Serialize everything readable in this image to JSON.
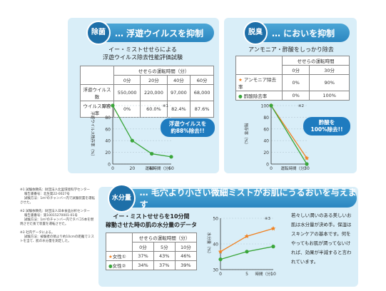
{
  "virus": {
    "badge": "除菌",
    "title": "… 浮遊ウイルスを抑制",
    "subtitle_1": "イー・ミストせせらによる",
    "subtitle_2": "浮遊ウイルス除去性能評価試験",
    "table": {
      "header": "せせらの運転時間（分）",
      "cols": [
        "0分",
        "20分",
        "40分",
        "60分"
      ],
      "rows": [
        {
          "label": "浮遊ウイルス数",
          "values": [
            "550,000",
            "220,000",
            "97,000",
            "68,000"
          ]
        },
        {
          "label": "ウイルス除去率",
          "values": [
            "0%",
            "60.0%",
            "82.4%",
            "87.6%"
          ]
        }
      ]
    },
    "callout_1": "浮遊ウイルスを",
    "callout_2": "約88%除去!!",
    "note_mark": "※1"
  },
  "odor": {
    "badge": "脱臭",
    "title": "… においを抑制",
    "subtitle": "アンモニア・酢酸をしっかり除去",
    "table": {
      "header": "せせらの運転時間",
      "cols": [
        "0分",
        "30分"
      ],
      "rows": [
        {
          "label": "アンモニア除去率",
          "values": [
            "0%",
            "90%"
          ]
        },
        {
          "label": "酢酸除去率",
          "values": [
            "0%",
            "100%"
          ]
        }
      ]
    },
    "callout_1": "酢酸を",
    "callout_2": "100%除去!!",
    "note_mark": "※2"
  },
  "mist": {
    "badge": "水分量",
    "title": "… 毛穴より小さい微細ミストがお肌にうるおいを与えます",
    "subtitle_1": "イー・ミストせせらを10分間",
    "subtitle_2": "稼動させた時の肌の水分量のデータ",
    "table": {
      "header": "せせらの運転時間（分）",
      "cols": [
        "0分",
        "5分",
        "10分"
      ],
      "rows": [
        {
          "label": "女性①",
          "values": [
            "37%",
            "43%",
            "46%"
          ]
        },
        {
          "label": "女性②",
          "values": [
            "34%",
            "37%",
            "39%"
          ]
        }
      ]
    },
    "description": "若々しい潤いのある美しいお肌は水分量が決め手。保湿はスキンケアの基本です。何をやってもお肌が潤ってないければ、効果が半減すると言われています。",
    "note_mark": "※3"
  },
  "notes": [
    "※1 試験依頼先：財団法人北里環境科学センター",
    "　 報告書番号：北生発22-0027号",
    "　 試験方法：1m³のチャンバー内で試験装置を運転させた。",
    "※2 試験依頼先：財団法人日本食品分析センター",
    "　 報告書番号：第10015270001-01号",
    "　 試験方法：1m³のチャンバー内でタバコ5本を燃焼させた後で装置を運転させた。",
    "※3 社内データによる。",
    "　 試験方法：被験者の頬より約10cmの距離でミストを当て、肌の水分量を測定した。"
  ],
  "chart_data": [
    {
      "type": "line",
      "title": "",
      "xlabel": "運転時間（分）",
      "ylabel": "浮遊ウイルス残存率（%）",
      "x": [
        0,
        20,
        40,
        60
      ],
      "xlim": [
        0,
        60
      ],
      "ylim": [
        0,
        100
      ],
      "yticks": [
        0,
        20,
        40,
        60,
        80,
        100
      ],
      "series": [
        {
          "name": "",
          "values": [
            100,
            40,
            17.6,
            12.4
          ],
          "color": "#3aa63a"
        }
      ]
    },
    {
      "type": "line",
      "title": "",
      "xlabel": "運転時間（分）",
      "ylabel": "残存率（%）",
      "x": [
        0,
        30
      ],
      "xlim": [
        0,
        30
      ],
      "ylim": [
        0,
        100
      ],
      "yticks": [
        0,
        20,
        40,
        60,
        80,
        100
      ],
      "series": [
        {
          "name": "アンモニア除去率",
          "values": [
            100,
            10
          ],
          "color": "#f08020"
        },
        {
          "name": "酢酸除去率",
          "values": [
            100,
            0
          ],
          "color": "#3aa63a"
        }
      ]
    },
    {
      "type": "line",
      "title": "",
      "xlabel": "時間（分）",
      "ylabel": "水分量（%）",
      "x": [
        0,
        5,
        10
      ],
      "xlim": [
        0,
        10
      ],
      "ylim": [
        30,
        50
      ],
      "yticks": [
        30,
        40,
        50
      ],
      "series": [
        {
          "name": "女性①",
          "values": [
            37,
            43,
            46
          ],
          "color": "#f08020"
        },
        {
          "name": "女性②",
          "values": [
            34,
            37,
            39
          ],
          "color": "#3aa63a"
        }
      ]
    }
  ]
}
